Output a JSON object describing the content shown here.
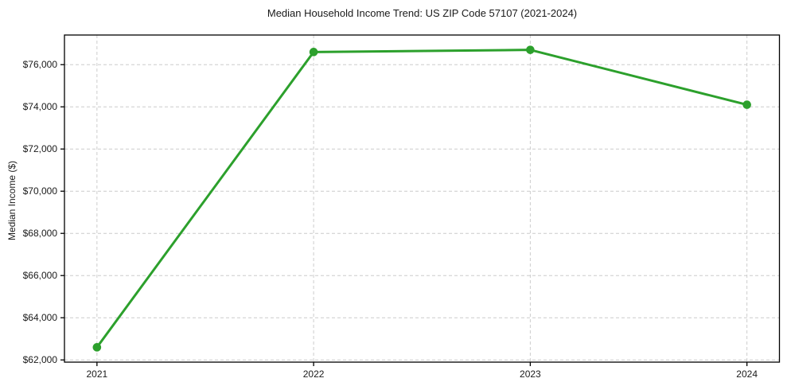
{
  "page": {
    "background_color": "#ffffff",
    "text_color": "#1a1a1a"
  },
  "chart_data": {
    "type": "line",
    "title": "Median Household Income Trend: US ZIP Code 57107 (2021-2024)",
    "xlabel": "",
    "ylabel": "Median Income ($)",
    "categories": [
      2021,
      2022,
      2023,
      2024
    ],
    "series": [
      {
        "name": "Median Household Income",
        "values": [
          62600,
          76600,
          76700,
          74100
        ],
        "color": "#2ca02c",
        "line_width": 3,
        "marker": "circle",
        "marker_radius": 5.3
      }
    ],
    "xlim": [
      2020.85,
      2024.15
    ],
    "ylim": [
      61895,
      77405
    ],
    "xticks": [
      2021,
      2022,
      2023,
      2024
    ],
    "xtick_labels": [
      "2021",
      "2022",
      "2023",
      "2024"
    ],
    "yticks": [
      62000,
      64000,
      66000,
      68000,
      70000,
      72000,
      74000,
      76000
    ],
    "ytick_labels": [
      "$62,000",
      "$64,000",
      "$66,000",
      "$68,000",
      "$70,000",
      "$72,000",
      "$74,000",
      "$76,000"
    ],
    "grid": true,
    "grid_color": "#cccccc",
    "grid_dash": "4 3",
    "spine_color": "#000000",
    "legend_position": "none"
  }
}
